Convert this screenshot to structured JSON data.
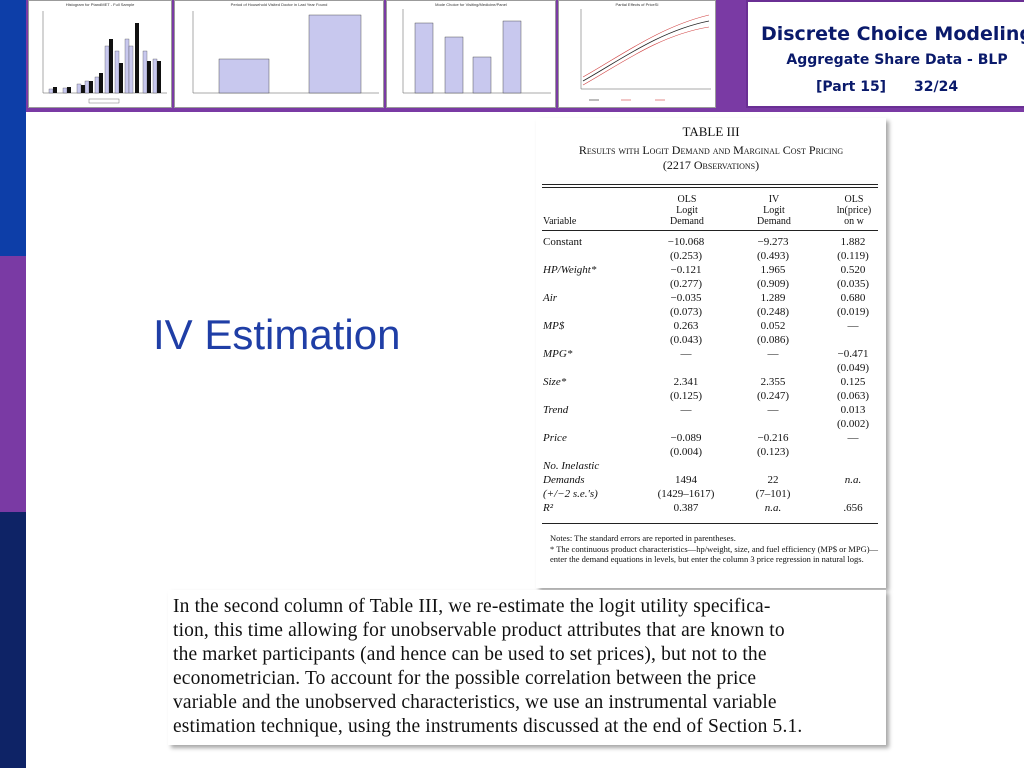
{
  "header": {
    "title": "Discrete Choice Modeling",
    "subtitle": "Aggregate Share Data - BLP",
    "part": "[Part 15]",
    "page": "32/24"
  },
  "thumbnails": [
    {
      "title": "Histogram for PtandMET - Full Sample"
    },
    {
      "title": "Period of Household Visited Doctor in Last Year Found"
    },
    {
      "title": "Mode Choice for Visiting/Medicine/Panel"
    },
    {
      "title": "Partial Effects of PriceSI",
      "legend": [
        "WAGE",
        "OTHER",
        "UPPER 95"
      ]
    }
  ],
  "heading": "IV Estimation",
  "table": {
    "title": "TABLE III",
    "subtitle1": "Results with Logit Demand and Marginal Cost Pricing",
    "subtitle2": "(2217 Observations)",
    "col_variable": "Variable",
    "columns": [
      {
        "l1": "OLS",
        "l2": "Logit",
        "l3": "Demand"
      },
      {
        "l1": "IV",
        "l2": "Logit",
        "l3": "Demand"
      },
      {
        "l1": "OLS",
        "l2": "ln(price)",
        "l3": "on w"
      }
    ],
    "rows": [
      {
        "label": "Constant",
        "c1": "−10.068",
        "c2": "−9.273",
        "c3": "1.882"
      },
      {
        "label": "",
        "c1": "(0.253)",
        "c2": "(0.493)",
        "c3": "(0.119)"
      },
      {
        "label": "HP/Weight*",
        "c1": "−0.121",
        "c2": "1.965",
        "c3": "0.520"
      },
      {
        "label": "",
        "c1": "(0.277)",
        "c2": "(0.909)",
        "c3": "(0.035)"
      },
      {
        "label": "Air",
        "c1": "−0.035",
        "c2": "1.289",
        "c3": "0.680"
      },
      {
        "label": "",
        "c1": "(0.073)",
        "c2": "(0.248)",
        "c3": "(0.019)"
      },
      {
        "label": "MP$",
        "c1": "0.263",
        "c2": "0.052",
        "c3": "—"
      },
      {
        "label": "",
        "c1": "(0.043)",
        "c2": "(0.086)",
        "c3": ""
      },
      {
        "label": "MPG*",
        "c1": "—",
        "c2": "—",
        "c3": "−0.471"
      },
      {
        "label": "",
        "c1": "",
        "c2": "",
        "c3": "(0.049)"
      },
      {
        "label": "Size*",
        "c1": "2.341",
        "c2": "2.355",
        "c3": "0.125"
      },
      {
        "label": "",
        "c1": "(0.125)",
        "c2": "(0.247)",
        "c3": "(0.063)"
      },
      {
        "label": "Trend",
        "c1": "—",
        "c2": "—",
        "c3": "0.013"
      },
      {
        "label": "",
        "c1": "",
        "c2": "",
        "c3": "(0.002)"
      },
      {
        "label": "Price",
        "c1": "−0.089",
        "c2": "−0.216",
        "c3": "—"
      },
      {
        "label": "",
        "c1": "(0.004)",
        "c2": "(0.123)",
        "c3": ""
      },
      {
        "label": "No. Inelastic",
        "c1": "",
        "c2": "",
        "c3": ""
      },
      {
        "label": "Demands",
        "c1": "1494",
        "c2": "22",
        "c3": "n.a."
      },
      {
        "label": "(+/−2 s.e.'s)",
        "c1": "(1429–1617)",
        "c2": "(7–101)",
        "c3": ""
      },
      {
        "label": "R²",
        "c1": "0.387",
        "c2": "n.a.",
        "c3": ".656"
      }
    ],
    "notes": [
      "Notes: The standard errors are reported in parentheses.",
      "* The continuous product characteristics—hp/weight, size, and fuel efficiency (MP$ or MPG)—enter the demand equations in levels, but enter the column 3 price regression in natural logs."
    ]
  },
  "paragraph": [
    "In the second column of Table III, we re-estimate the logit utility specifica-",
    "tion, this time allowing for unobservable product attributes that are known to",
    "the market participants (and hence can be used to set prices), but not to the",
    "econometrician. To account for the possible correlation between the price",
    "variable and the unobserved characteristics, we use an instrumental variable",
    "estimation technique, using the instruments discussed at the end of Section 5.1."
  ],
  "colors": {
    "accent_purple": "#7a3aa4",
    "accent_blue": "#0d3ea8",
    "heading_blue": "#1f3ea6",
    "title_navy": "#0a1a6b"
  }
}
